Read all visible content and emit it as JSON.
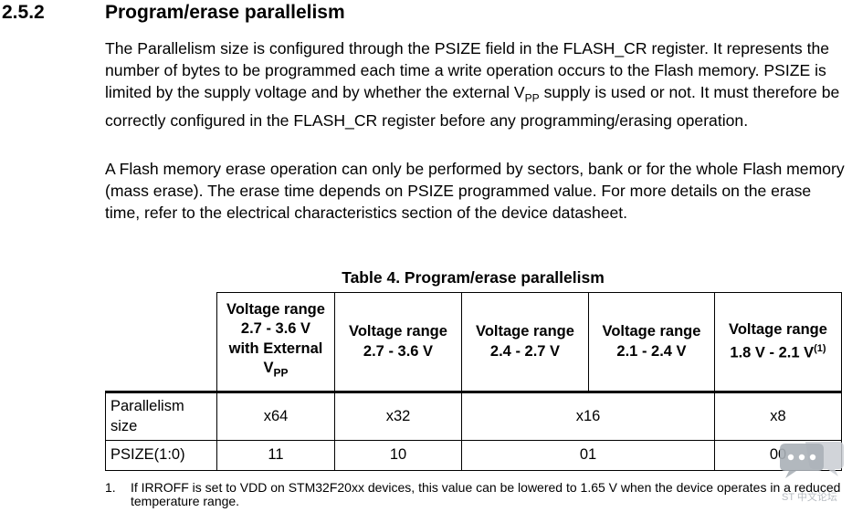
{
  "section": {
    "number": "2.5.2",
    "title": "Program/erase parallelism"
  },
  "paragraph1": {
    "before_sub": "The Parallelism size is configured through the PSIZE field in the FLASH_CR register. It represents the number of bytes to be programmed each time a write operation occurs to the Flash memory. PSIZE is limited by the supply voltage and by whether the external V",
    "sub": "PP",
    "after_sub": " supply is used or not. It must therefore be correctly configured in the FLASH_CR register before any programming/erasing operation."
  },
  "paragraph2": "A Flash memory erase operation can only be performed by sectors, bank or for the whole Flash memory (mass erase). The erase time depends on PSIZE programmed value. For more details on the erase time, refer to the electrical characteristics section of the device datasheet.",
  "table": {
    "title": "Table 4. Program/erase parallelism",
    "headers": [
      {
        "line1": "Voltage range",
        "line2": "2.7 - 3.6 V",
        "line3": "with External",
        "line4_main": "V",
        "line4_sub": "PP"
      },
      {
        "line1": "Voltage range",
        "line2": "2.7 - 3.6 V"
      },
      {
        "line1": "Voltage range",
        "line2": "2.4 - 2.7 V"
      },
      {
        "line1": "Voltage range",
        "line2": "2.1 - 2.4 V"
      },
      {
        "line1": "Voltage range",
        "line2": "1.8 V - 2.1 V",
        "sup": "(1)"
      }
    ],
    "rows": [
      {
        "label_line1": "Parallelism",
        "label_line2": "size",
        "cells": [
          "x64",
          "x32",
          "x16",
          "x8"
        ]
      },
      {
        "label": "PSIZE(1:0)",
        "cells": [
          "11",
          "10",
          "01",
          "00"
        ]
      }
    ]
  },
  "footnote": {
    "number": "1.",
    "text": "If IRROFF is set to VDD on STM32F20xx devices, this value can be lowered to 1.65 V when the device operates in a reduced temperature range."
  },
  "watermark": {
    "icon": "chat-bubble-icon",
    "text": "ST 中文论坛",
    "color": "#b7bcc2"
  }
}
